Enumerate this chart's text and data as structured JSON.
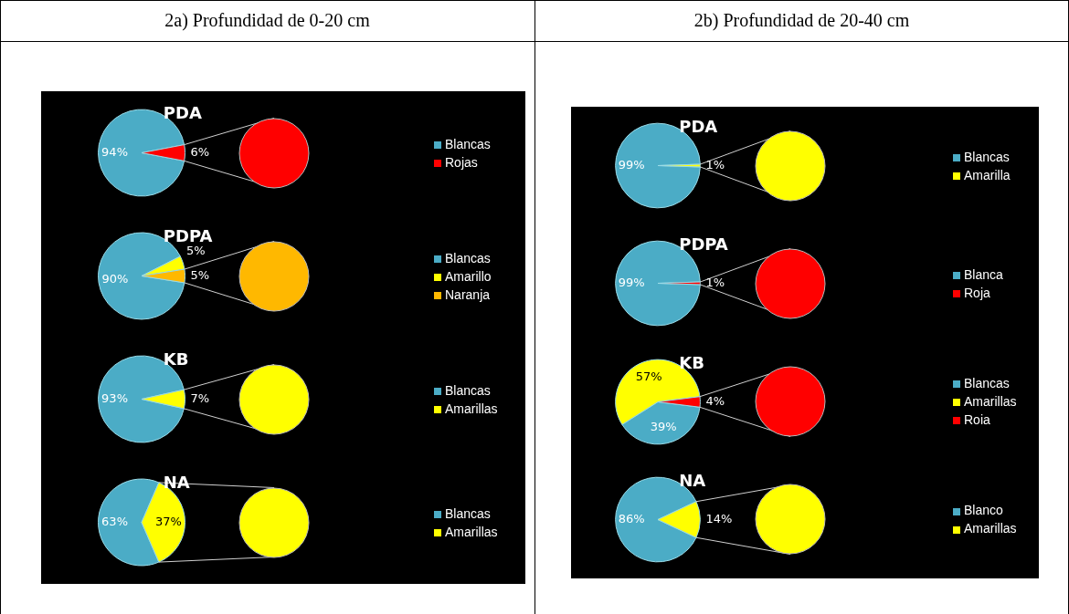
{
  "chart_data": [
    {
      "type": "pie",
      "subtitle": "2a) Profundidad de 0-20 cm",
      "title": "PDA",
      "categories": [
        "Blancas",
        "Rojas"
      ],
      "values": [
        94,
        6
      ],
      "colors": [
        "#4bacc6",
        "#ff0000"
      ],
      "value_labels": [
        "94%",
        "6%"
      ],
      "legend": "right"
    },
    {
      "type": "pie",
      "title": "PDPA",
      "categories": [
        "Blancas",
        "Amarillo",
        "Naranja"
      ],
      "values": [
        90,
        5,
        5
      ],
      "colors": [
        "#4bacc6",
        "#ffff00",
        "#ffb800"
      ],
      "value_labels": [
        "90%",
        "5%",
        "5%"
      ],
      "legend": "right"
    },
    {
      "type": "pie",
      "title": "KB",
      "categories": [
        "Blancas",
        "Amarillas"
      ],
      "values": [
        93,
        7
      ],
      "colors": [
        "#4bacc6",
        "#ffff00"
      ],
      "value_labels": [
        "93%",
        "7%"
      ],
      "legend": "right"
    },
    {
      "type": "pie",
      "title": "NA",
      "categories": [
        "Blancas",
        "Amarillas"
      ],
      "values": [
        63,
        37
      ],
      "colors": [
        "#4bacc6",
        "#ffff00"
      ],
      "value_labels": [
        "63%",
        "37%"
      ],
      "legend": "right"
    },
    {
      "type": "pie",
      "subtitle": "2b) Profundidad de 20-40 cm",
      "title": "PDA",
      "categories": [
        "Blancas",
        "Amarilla"
      ],
      "values": [
        99,
        1
      ],
      "colors": [
        "#4bacc6",
        "#ffff00"
      ],
      "value_labels": [
        "99%",
        "1%"
      ],
      "legend": "right"
    },
    {
      "type": "pie",
      "title": "PDPA",
      "categories": [
        "Blanca",
        "Roja"
      ],
      "values": [
        99,
        1
      ],
      "colors": [
        "#4bacc6",
        "#ff0000"
      ],
      "value_labels": [
        "99%",
        "1%"
      ],
      "legend": "right"
    },
    {
      "type": "pie",
      "title": "KB",
      "categories": [
        "Blancas",
        "Amarillas",
        "Roia"
      ],
      "values": [
        39,
        57,
        4
      ],
      "colors": [
        "#4bacc6",
        "#ffff00",
        "#ff0000"
      ],
      "value_labels": [
        "39%",
        "57%",
        "4%"
      ],
      "legend": "right"
    },
    {
      "type": "pie",
      "title": "NA",
      "categories": [
        "Blanco",
        "Amarillas"
      ],
      "values": [
        86,
        14
      ],
      "colors": [
        "#4bacc6",
        "#ffff00"
      ],
      "value_labels": [
        "86%",
        "14%"
      ],
      "legend": "right"
    }
  ]
}
